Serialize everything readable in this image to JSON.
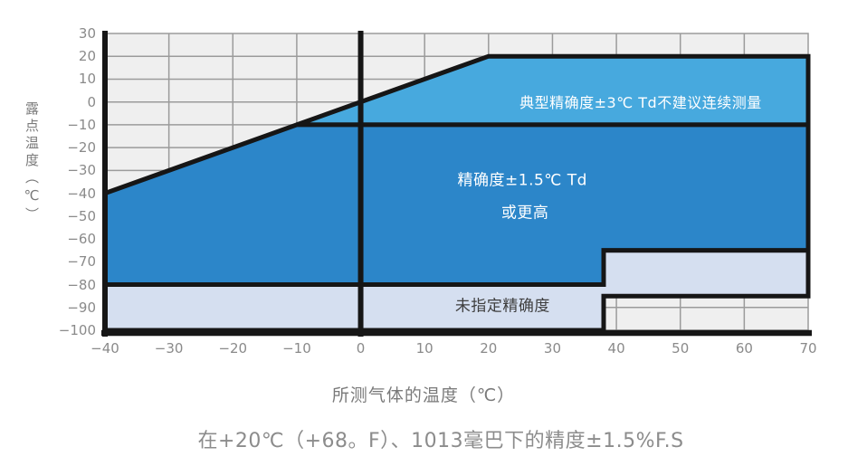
{
  "page": {
    "background": "#ffffff",
    "caption": "在+20℃（+68。F）、1013毫巴下的精度±1.5%F.S"
  },
  "chart_data": {
    "type": "area",
    "title": "",
    "xlabel": "所测气体的温度（℃）",
    "ylabel": "露点温度（℃）",
    "xlim": [
      -40,
      70
    ],
    "ylim": [
      -100,
      30
    ],
    "grid": true,
    "legend_position": "none",
    "x_tick_values": [
      -40,
      -30,
      -20,
      -10,
      0,
      10,
      20,
      30,
      40,
      50,
      60,
      70
    ],
    "x_tick_labels": [
      "−40",
      "−30",
      "−20",
      "−10",
      "0",
      "10",
      "20",
      "30",
      "40",
      "50",
      "60",
      "70"
    ],
    "y_tick_values": [
      30,
      20,
      10,
      0,
      -10,
      -20,
      -30,
      -40,
      -50,
      -60,
      -70,
      -80,
      -90,
      -100
    ],
    "y_tick_labels": [
      "30",
      "20",
      "10",
      "0",
      "−10",
      "−20",
      "−30",
      "−40",
      "−50",
      "−60",
      "−70",
      "−80",
      "−90",
      "−100"
    ],
    "colors": {
      "plot_bg": "#efefef",
      "grid": "#9b9b9b",
      "border": "#161616",
      "region_typical": "#47a9de",
      "region_high": "#2c86c9",
      "region_unspecified": "#d5dff0",
      "tick_text": "#8a8a8a",
      "axis_title_text": "#7a7a7a",
      "caption_text": "#8c8c8c"
    },
    "regions": [
      {
        "name": "region-typical-accuracy",
        "label": "典型精确度±3℃ Td不建议连续测量",
        "fill": "#47a9de",
        "vertices": [
          [
            -10,
            -10
          ],
          [
            20,
            20
          ],
          [
            70,
            20
          ],
          [
            70,
            -10
          ]
        ]
      },
      {
        "name": "region-high-accuracy",
        "label": "精确度±1.5℃ Td 或更高",
        "fill": "#2c86c9",
        "vertices": [
          [
            -40,
            -40
          ],
          [
            -10,
            -10
          ],
          [
            70,
            -10
          ],
          [
            70,
            -65
          ],
          [
            38,
            -65
          ],
          [
            38,
            -80
          ],
          [
            -40,
            -80
          ]
        ]
      },
      {
        "name": "region-unspecified-accuracy",
        "label": "未指定精确度",
        "fill": "#d5dff0",
        "vertices": [
          [
            -40,
            -80
          ],
          [
            38,
            -80
          ],
          [
            38,
            -65
          ],
          [
            70,
            -65
          ],
          [
            70,
            -85
          ],
          [
            38,
            -85
          ],
          [
            38,
            -100
          ],
          [
            -40,
            -100
          ]
        ]
      }
    ],
    "labels": [
      {
        "name": "label-typical-accuracy",
        "text": "典型精确度±3℃ Td不建议连续测量",
        "x": 43.8,
        "y": 0.3,
        "color": "#ffffff",
        "size": 16
      },
      {
        "name": "label-high-accuracy-line1",
        "text": "精确度±1.5℃ Td",
        "x": 25.3,
        "y": -33.5,
        "color": "#ffffff",
        "size": 17
      },
      {
        "name": "label-high-accuracy-line2",
        "text": "或更高",
        "x": 25.7,
        "y": -47.5,
        "color": "#ffffff",
        "size": 17
      },
      {
        "name": "label-unspecified-accuracy",
        "text": "未指定精确度",
        "x": 22.2,
        "y": -88.5,
        "color": "#3f3f3f",
        "size": 17
      }
    ],
    "emphasis_lines": {
      "vertical_at_x": [
        -40,
        0
      ],
      "horizontal_at_y": [
        -100
      ]
    }
  }
}
